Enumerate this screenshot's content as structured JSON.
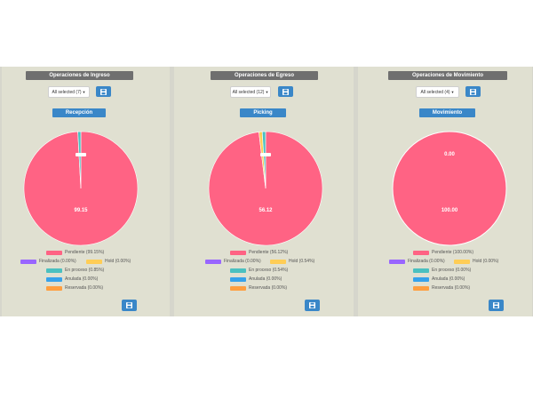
{
  "colors": {
    "pendiente": "#ff6384",
    "finalizada": "#9966ff",
    "hold": "#ffcd56",
    "en_proceso": "#4bc0c0",
    "anulada": "#36a2eb",
    "reservada": "#ff9f40",
    "panel_bg": "#e0e0d1",
    "title_bg": "#6f6f6f",
    "accent": "#3a87c8"
  },
  "icons": {
    "export": "floppy-disk-icon",
    "select_caret": "caret-down-icon"
  },
  "panels": [
    {
      "title": "Operaciones de Ingreso",
      "filter": "All selected (7)",
      "section": "Recepción",
      "legend": [
        "Pendiente (99.15%)",
        "Finalizada (0.00%)",
        "Hold (0.00%)",
        "En proceso (0.85%)",
        "Anulada (0.00%)",
        "Reservada (0.00%)"
      ],
      "chart_data": {
        "type": "pie",
        "categories": [
          "Pendiente",
          "Finalizada",
          "Hold",
          "En proceso",
          "Anulada",
          "Reservada"
        ],
        "values": [
          99.15,
          0.0,
          0.0,
          0.85,
          0.0,
          0.0
        ],
        "data_labels": [
          "99.15",
          "",
          "",
          "",
          "",
          ""
        ]
      }
    },
    {
      "title": "Operaciones de Egreso",
      "filter": "All selected (12)",
      "section": "Picking",
      "legend": [
        "Pendiente (56.12%)",
        "Finalizada (0.00%)",
        "Hold (0.54%)",
        "En proceso (0.54%)",
        "Anulada (0.00%)",
        "Reservada (0.00%)"
      ],
      "chart_data": {
        "type": "pie",
        "categories": [
          "Pendiente",
          "Finalizada",
          "Hold",
          "En proceso",
          "Anulada",
          "Reservada"
        ],
        "values": [
          56.12,
          0.0,
          0.54,
          0.54,
          0.0,
          0.0
        ],
        "data_labels": [
          "56.12",
          "",
          "",
          "",
          "",
          ""
        ]
      }
    },
    {
      "title": "Operaciones de Movimiento",
      "filter": "All selected (4)",
      "section": "Movimiento",
      "legend": [
        "Pendiente (100.00%)",
        "Finalizada (0.00%)",
        "Hold (0.00%)",
        "En proceso (0.00%)",
        "Anulada (0.00%)",
        "Reservada (0.00%)"
      ],
      "chart_data": {
        "type": "pie",
        "categories": [
          "Pendiente",
          "Finalizada",
          "Hold",
          "En proceso",
          "Anulada",
          "Reservada"
        ],
        "values": [
          100.0,
          0.0,
          0.0,
          0.0,
          0.0,
          0.0
        ],
        "data_labels": [
          "100.00",
          "0.00",
          "",
          "",
          "",
          ""
        ]
      }
    }
  ]
}
